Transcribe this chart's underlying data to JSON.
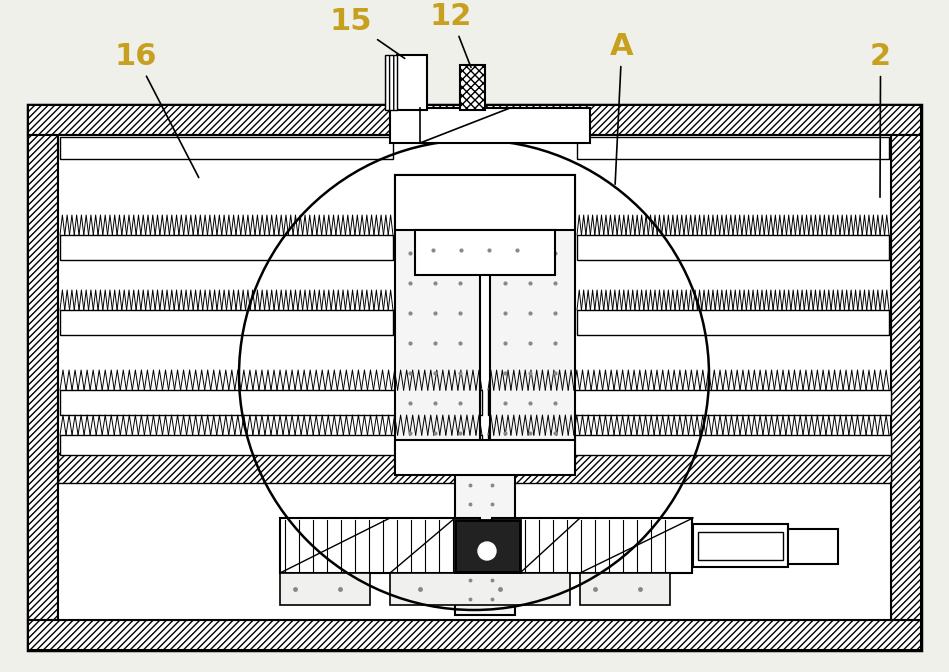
{
  "bg_color": "#f0f0eb",
  "label_color": "#c8a020",
  "label_fontsize": 22,
  "figsize": [
    9.49,
    6.72
  ],
  "dpi": 100
}
